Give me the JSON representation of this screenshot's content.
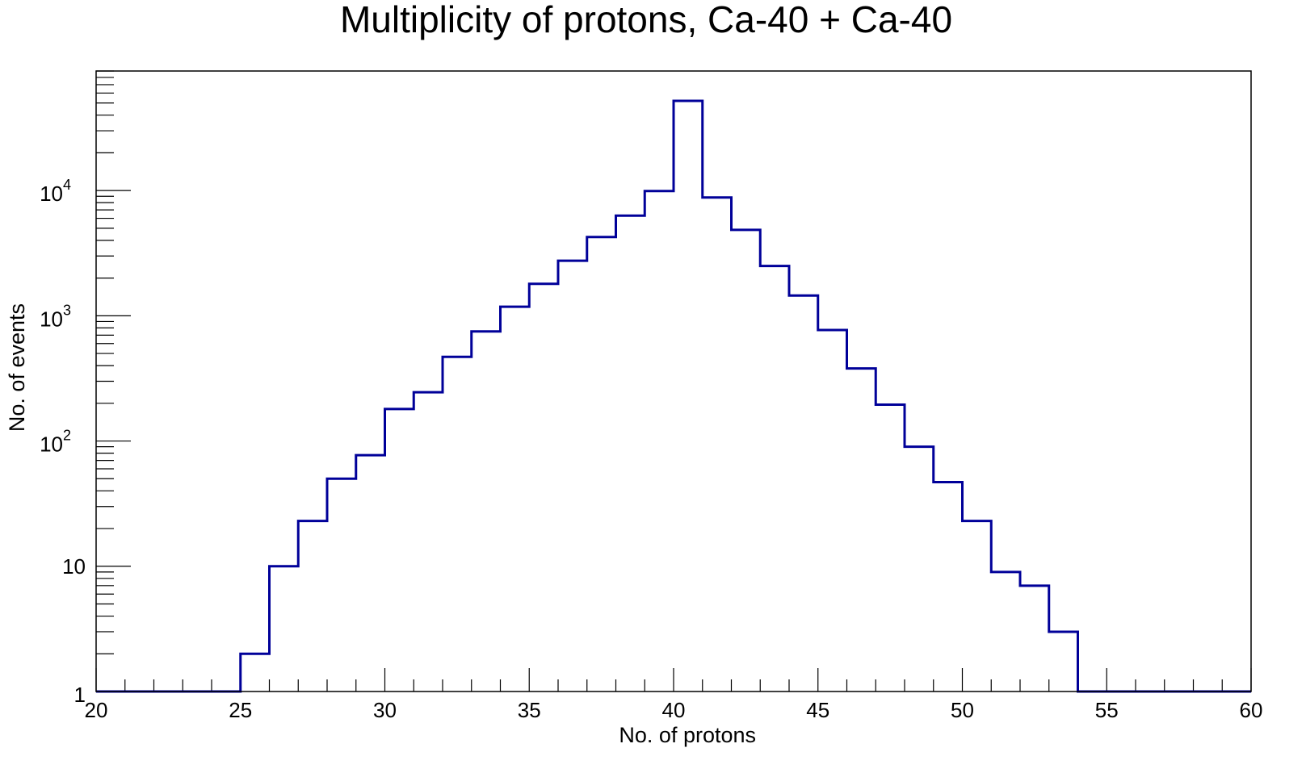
{
  "chart_data": {
    "type": "histogram",
    "title": "Multiplicity of protons, Ca-40 + Ca-40",
    "xlabel": "No. of protons",
    "ylabel": "No. of events",
    "xlim": [
      20,
      60
    ],
    "ylim": [
      1,
      90000
    ],
    "y_scale": "log",
    "grid": false,
    "line_color": "#000099",
    "x_ticks": [
      "20",
      "25",
      "30",
      "35",
      "40",
      "45",
      "50",
      "55",
      "60"
    ],
    "y_ticks": [
      {
        "value": 1,
        "base": "1",
        "exp": ""
      },
      {
        "value": 10,
        "base": "10",
        "exp": ""
      },
      {
        "value": 100,
        "base": "10",
        "exp": "2"
      },
      {
        "value": 1000,
        "base": "10",
        "exp": "3"
      },
      {
        "value": 10000,
        "base": "10",
        "exp": "4"
      }
    ],
    "bin_edges": [
      25,
      26,
      27,
      28,
      29,
      30,
      31,
      32,
      33,
      34,
      35,
      36,
      37,
      38,
      39,
      40,
      41,
      42,
      43,
      44,
      45,
      46,
      47,
      48,
      49,
      50,
      51,
      52,
      53,
      54
    ],
    "values": [
      2,
      10,
      23,
      50,
      77,
      180,
      245,
      470,
      750,
      1180,
      1800,
      2750,
      4250,
      6300,
      9900,
      52000,
      8800,
      4850,
      2500,
      1450,
      770,
      380,
      195,
      90,
      47,
      23,
      9,
      7,
      3
    ]
  }
}
